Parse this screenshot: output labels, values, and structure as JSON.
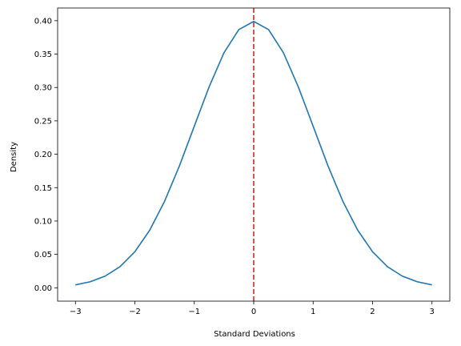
{
  "chart_data": {
    "type": "line",
    "title": "",
    "xlabel": "Standard Deviations",
    "ylabel": "Density",
    "xlim": [
      -3.3,
      3.3
    ],
    "ylim": [
      -0.02,
      0.419
    ],
    "grid": false,
    "legend": "none",
    "x_ticks": [
      {
        "value": -3,
        "label": "−3"
      },
      {
        "value": -2,
        "label": "−2"
      },
      {
        "value": -1,
        "label": "−1"
      },
      {
        "value": 0,
        "label": "0"
      },
      {
        "value": 1,
        "label": "1"
      },
      {
        "value": 2,
        "label": "2"
      },
      {
        "value": 3,
        "label": "3"
      }
    ],
    "y_ticks": [
      {
        "value": 0.0,
        "label": "0.00"
      },
      {
        "value": 0.05,
        "label": "0.05"
      },
      {
        "value": 0.1,
        "label": "0.10"
      },
      {
        "value": 0.15,
        "label": "0.15"
      },
      {
        "value": 0.2,
        "label": "0.20"
      },
      {
        "value": 0.25,
        "label": "0.25"
      },
      {
        "value": 0.3,
        "label": "0.30"
      },
      {
        "value": 0.35,
        "label": "0.35"
      },
      {
        "value": 0.4,
        "label": "0.40"
      }
    ],
    "series": [
      {
        "color": "#1f77b4",
        "x": [
          -3.0,
          -2.75,
          -2.5,
          -2.25,
          -2.0,
          -1.75,
          -1.5,
          -1.25,
          -1.0,
          -0.75,
          -0.5,
          -0.25,
          0.0,
          0.25,
          0.5,
          0.75,
          1.0,
          1.25,
          1.5,
          1.75,
          2.0,
          2.25,
          2.5,
          2.75,
          3.0
        ],
        "y": [
          0.0044,
          0.0091,
          0.0175,
          0.0317,
          0.054,
          0.0863,
          0.1295,
          0.1826,
          0.242,
          0.3011,
          0.3521,
          0.3867,
          0.3989,
          0.3867,
          0.3521,
          0.3011,
          0.242,
          0.1826,
          0.1295,
          0.0863,
          0.054,
          0.0317,
          0.0175,
          0.0091,
          0.0044
        ]
      }
    ],
    "vlines": [
      {
        "x": 0,
        "color": "#d62728",
        "style": "dashed"
      }
    ]
  }
}
